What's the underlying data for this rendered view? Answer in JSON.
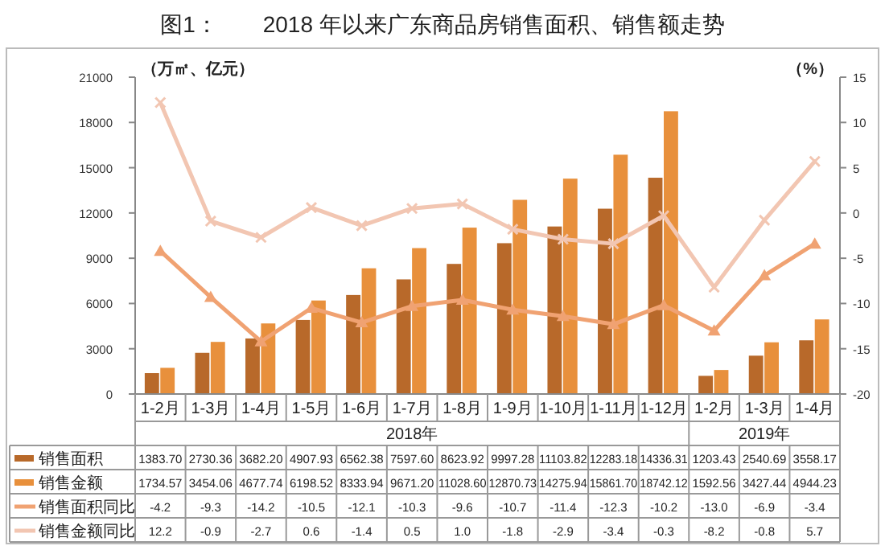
{
  "chart_data": {
    "type": "bar",
    "title": "图1：　　2018 年以来广东商品房销售面积、销售额走势",
    "ylabel": "（万㎡、亿元）",
    "y2label": "（%）",
    "categories": [
      "1-2月",
      "1-3月",
      "1-4月",
      "1-5月",
      "1-6月",
      "1-7月",
      "1-8月",
      "1-9月",
      "1-10月",
      "1-11月",
      "1-12月",
      "1-2月",
      "1-3月",
      "1-4月"
    ],
    "annotations": [
      "2018年",
      "2019年"
    ],
    "series": [
      {
        "name": "销售面积",
        "color": "#b8692a",
        "values": [
          1383.7,
          2730.36,
          3682.2,
          4907.93,
          6562.38,
          7597.6,
          8623.92,
          9997.28,
          11103.82,
          12283.18,
          14336.31,
          1203.43,
          2540.69,
          3558.17
        ],
        "value_labels": [
          "1383.70",
          "2730.36",
          "3682.20",
          "4907.93",
          "6562.38",
          "7597.60",
          "8623.92",
          "9997.28",
          "11103.82",
          "12283.18",
          "14336.31",
          "1203.43",
          "2540.69",
          "3558.17"
        ]
      },
      {
        "name": "销售金额",
        "color": "#e8903c",
        "values": [
          1734.57,
          3454.06,
          4677.74,
          6198.52,
          8333.94,
          9671.2,
          11028.6,
          12870.73,
          14275.94,
          15861.7,
          18742.12,
          1592.56,
          3427.44,
          4944.23
        ],
        "value_labels": [
          "1734.57",
          "3454.06",
          "4677.74",
          "6198.52",
          "8333.94",
          "9671.20",
          "11028.60",
          "12870.73",
          "14275.94",
          "15861.70",
          "18742.12",
          "1592.56",
          "3427.44",
          "4944.23"
        ]
      },
      {
        "name": "销售面积同比",
        "type": "line",
        "axis": "y2",
        "marker": "triangle",
        "color": "#f0a272",
        "values": [
          -4.2,
          -9.3,
          -14.2,
          -10.5,
          -12.1,
          -10.3,
          -9.6,
          -10.7,
          -11.4,
          -12.3,
          -10.2,
          -13.0,
          -6.9,
          -3.4
        ],
        "value_labels": [
          "-4.2",
          "-9.3",
          "-14.2",
          "-10.5",
          "-12.1",
          "-10.3",
          "-9.6",
          "-10.7",
          "-11.4",
          "-12.3",
          "-10.2",
          "-13.0",
          "-6.9",
          "-3.4"
        ]
      },
      {
        "name": "销售金额同比",
        "type": "line",
        "axis": "y2",
        "marker": "cross",
        "color": "#f2c6b2",
        "values": [
          12.2,
          -0.9,
          -2.7,
          0.6,
          -1.4,
          0.5,
          1.0,
          -1.8,
          -2.9,
          -3.4,
          -0.3,
          -8.2,
          -0.8,
          5.7
        ],
        "value_labels": [
          "12.2",
          "-0.9",
          "-2.7",
          "0.6",
          "-1.4",
          "0.5",
          "1.0",
          "-1.8",
          "-2.9",
          "-3.4",
          "-0.3",
          "-8.2",
          "-0.8",
          "5.7"
        ]
      }
    ],
    "ylim": [
      0,
      21000
    ],
    "yticks": [
      0,
      3000,
      6000,
      9000,
      12000,
      15000,
      18000,
      21000
    ],
    "y2lim": [
      -20,
      15
    ],
    "y2ticks": [
      -20,
      -15,
      -10,
      -5,
      0,
      5,
      10,
      15
    ],
    "legend": "bottom",
    "grid": false
  }
}
